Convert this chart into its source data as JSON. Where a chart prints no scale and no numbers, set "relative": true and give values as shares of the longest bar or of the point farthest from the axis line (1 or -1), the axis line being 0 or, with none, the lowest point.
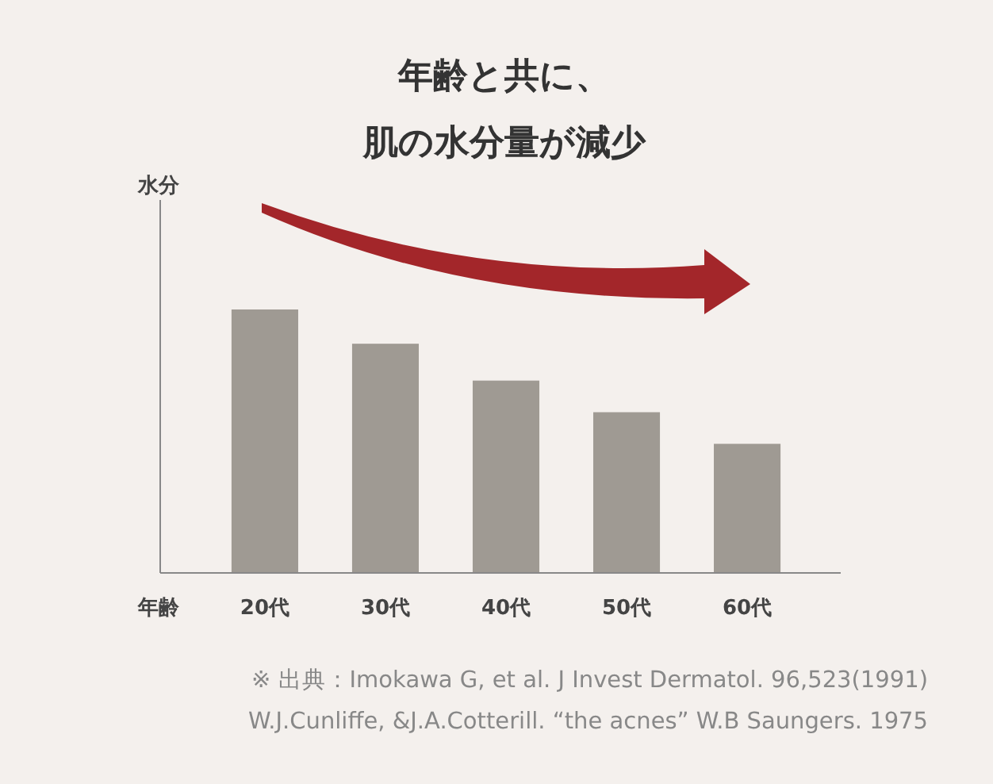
{
  "chart_data": {
    "type": "bar",
    "title": "年齢と共に、肌の水分量が減少",
    "xlabel": "年齢",
    "categories": [
      "20代",
      "30代",
      "40代",
      "50代",
      "60代"
    ],
    "values": [
      1,
      0.87,
      0.73,
      0.61,
      0.49
    ],
    "color": "#9f9a93",
    "relative": true,
    "annotations": [
      "水分",
      "※ 出典：Imokawa G, et al. J Invest Dermatol. 96,523(1991)",
      "W.J.Cunliffe, &J.A.Cotterill. “the acnes” W.B Saungers. 1975"
    ]
  }
}
